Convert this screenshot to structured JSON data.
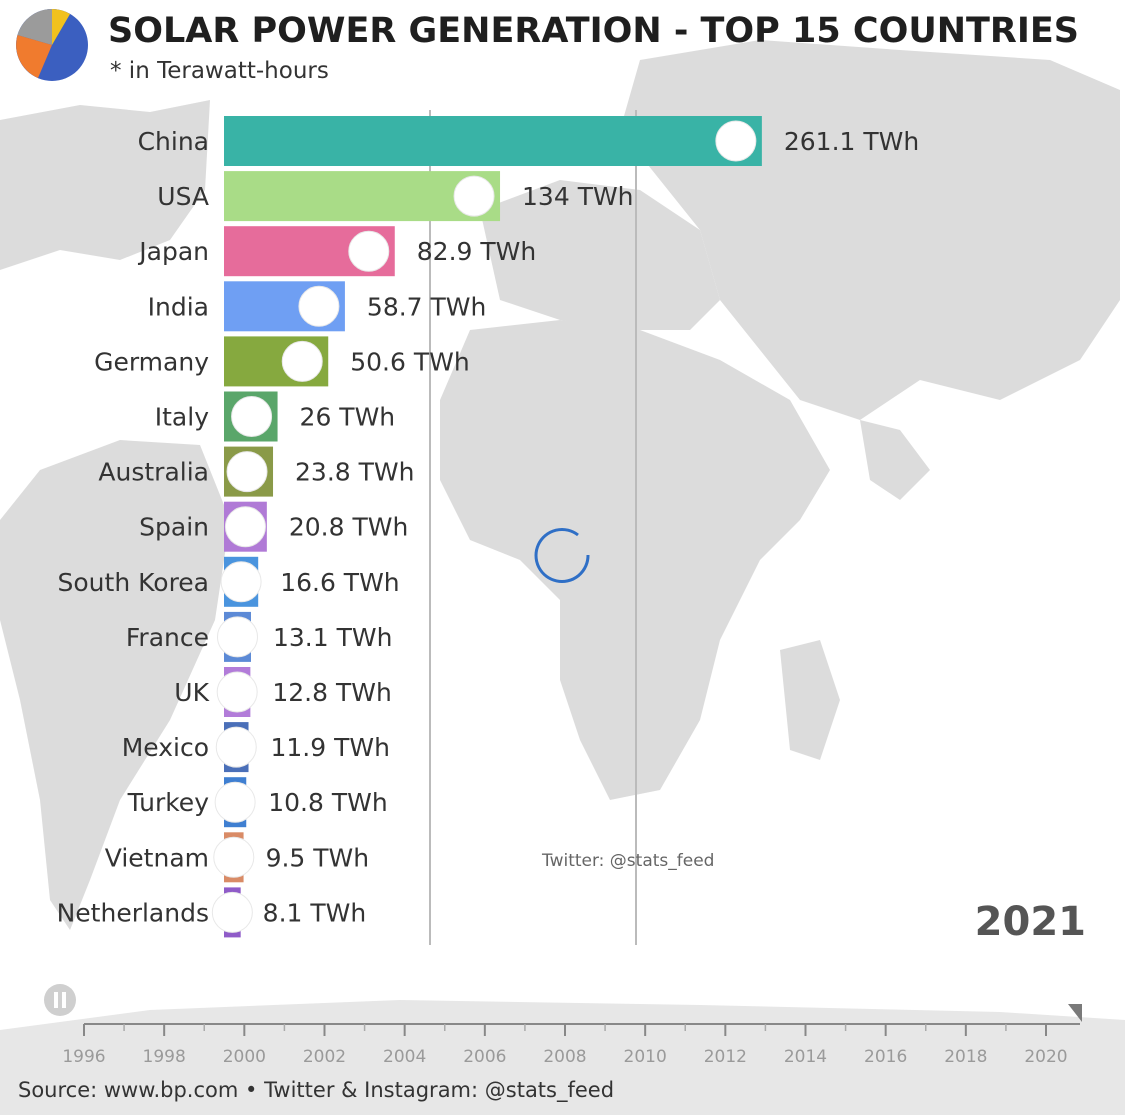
{
  "colors": {
    "China": "#39b3a6",
    "USA": "#a9dc87",
    "Japan": "#e66c9b",
    "India": "#6f9ff3",
    "Germany": "#86a93f",
    "Italy": "#5aa66a",
    "Australia": "#8a9a48",
    "Spain": "#b07ad6",
    "South Korea": "#4a94de",
    "France": "#5c8ad6",
    "UK": "#b27cd9",
    "Mexico": "#4a6fb8",
    "Turkey": "#3f7fd1",
    "Vietnam": "#d98b66",
    "Netherlands": "#8f5cc8"
  },
  "chart_data": {
    "type": "bar",
    "orientation": "horizontal",
    "title": "SOLAR POWER GENERATION - TOP 15 COUNTRIES",
    "subtitle": "* in Terawatt-hours",
    "categories": [
      "China",
      "USA",
      "Japan",
      "India",
      "Germany",
      "Italy",
      "Australia",
      "Spain",
      "South Korea",
      "France",
      "UK",
      "Mexico",
      "Turkey",
      "Vietnam",
      "Netherlands"
    ],
    "values": [
      261.1,
      134,
      82.9,
      58.7,
      50.6,
      26,
      23.8,
      20.8,
      16.6,
      13.1,
      12.8,
      11.9,
      10.8,
      9.5,
      8.1
    ],
    "value_labels": [
      "261.1 TWh",
      "134 TWh",
      "82.9 TWh",
      "58.7 TWh",
      "50.6 TWh",
      "26 TWh",
      "23.8 TWh",
      "20.8 TWh",
      "16.6 TWh",
      "13.1 TWh",
      "12.8 TWh",
      "11.9 TWh",
      "10.8 TWh",
      "9.5 TWh",
      "8.1 TWh"
    ],
    "year": "2021",
    "timeline": {
      "ticks": [
        "1996",
        "1998",
        "2000",
        "2002",
        "2004",
        "2006",
        "2008",
        "2010",
        "2012",
        "2014",
        "2016",
        "2018",
        "2020"
      ],
      "current_position": 1.0
    },
    "grid": true,
    "legend": "none"
  },
  "watermark": "Twitter: @stats_feed",
  "source": "Source: www.bp.com • Twitter & Instagram: @stats_feed",
  "icons": {
    "logo": "pie-chart-logo",
    "loading": "loading-spinner-icon",
    "play": "play-pause-icon"
  }
}
